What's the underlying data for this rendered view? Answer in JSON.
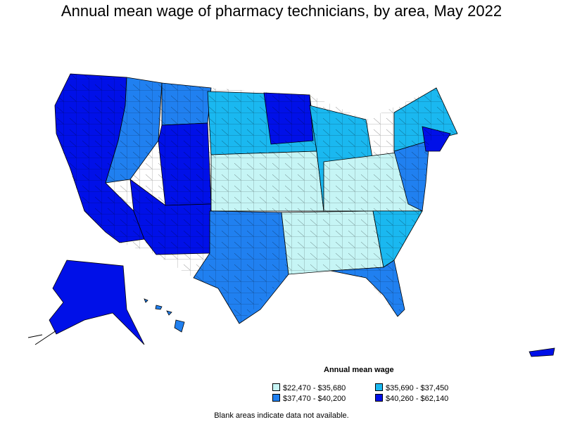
{
  "title": "Annual mean wage of pharmacy technicians, by area, May 2022",
  "legend": {
    "title": "Annual mean wage",
    "items": [
      {
        "label": "$22,470 - $35,680",
        "color": "#c6f5f5"
      },
      {
        "label": "$35,690 - $37,450",
        "color": "#1ab8f0"
      },
      {
        "label": "$37,470 - $40,200",
        "color": "#2080f0"
      },
      {
        "label": "$40,260 - $62,140",
        "color": "#0010e8"
      }
    ]
  },
  "note": "Blank areas indicate data not available.",
  "colors": {
    "border": "#000000",
    "background": "#ffffff"
  }
}
